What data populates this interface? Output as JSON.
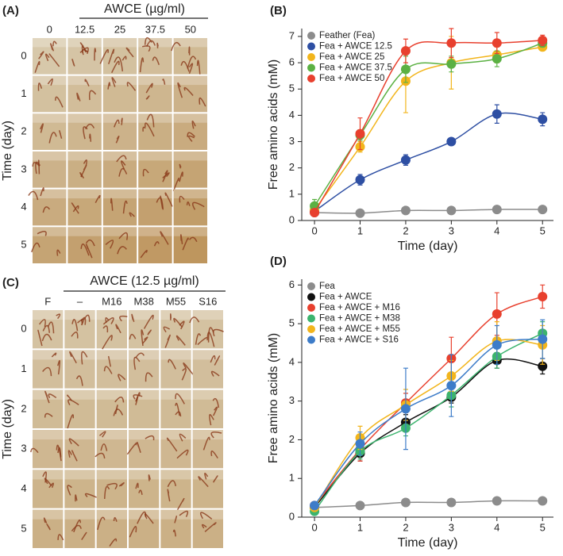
{
  "photo_panels": [
    {
      "label": "(A)",
      "header": "AWCE (µg/ml)",
      "columns": [
        "0",
        "12.5",
        "25",
        "37.5",
        "50"
      ],
      "y_label": "Time (day)",
      "rows": [
        "0",
        "1",
        "2",
        "3",
        "4",
        "5"
      ]
    },
    {
      "label": "(C)",
      "header": "AWCE (12.5 µg/ml)",
      "columns": [
        "F",
        "–",
        "M16",
        "M38",
        "M55",
        "S16"
      ],
      "y_label": "Time (day)",
      "rows": [
        "0",
        "1",
        "2",
        "3",
        "4",
        "5"
      ]
    }
  ],
  "chart_data": [
    {
      "type": "scatter",
      "label": "(B)",
      "x_label": "Time (day)",
      "y_label": "Free amino acids (mM)",
      "x": [
        0,
        1,
        2,
        3,
        4,
        5
      ],
      "xlim": [
        -0.28,
        5.24
      ],
      "xticks": [
        0,
        1,
        2,
        3,
        4,
        5
      ],
      "ylim": [
        0,
        7.3
      ],
      "yticks": [
        0,
        1,
        2,
        3,
        4,
        5,
        6,
        7
      ],
      "legend": "upper left",
      "series": [
        {
          "name": "Feather (Fea)",
          "color": "#8c8c8c",
          "values": [
            0.3,
            0.28,
            0.38,
            0.38,
            0.42,
            0.42
          ],
          "errors": [
            0.03,
            0.03,
            0.03,
            0.03,
            0.03,
            0.03
          ]
        },
        {
          "name": "Fea + AWCE 12.5",
          "color": "#2e4fa3",
          "values": [
            0.35,
            1.55,
            2.3,
            3.0,
            4.05,
            3.85
          ],
          "errors": [
            0.1,
            0.2,
            0.2,
            0.05,
            0.35,
            0.25
          ]
        },
        {
          "name": "Fea + AWCE 25",
          "color": "#f2b51c",
          "values": [
            0.4,
            2.8,
            5.3,
            6.0,
            6.3,
            6.6
          ],
          "errors": [
            0.1,
            0.2,
            1.2,
            1.0,
            0.3,
            0.1
          ]
        },
        {
          "name": "Fea + AWCE 37.5",
          "color": "#5bb143",
          "values": [
            0.55,
            3.25,
            5.75,
            5.95,
            6.15,
            6.75
          ],
          "errors": [
            0.25,
            0.2,
            0.5,
            0.3,
            0.3,
            0.15
          ]
        },
        {
          "name": "Fea + AWCE 50",
          "color": "#e8402e",
          "values": [
            0.3,
            3.3,
            6.45,
            6.75,
            6.75,
            6.85
          ],
          "errors": [
            0.1,
            0.6,
            0.45,
            0.55,
            0.4,
            0.2
          ]
        }
      ]
    },
    {
      "type": "scatter",
      "label": "(D)",
      "x_label": "Time (day)",
      "y_label": "Free amino acids (mM)",
      "x": [
        0,
        1,
        2,
        3,
        4,
        5
      ],
      "xlim": [
        -0.28,
        5.24
      ],
      "xticks": [
        0,
        1,
        2,
        3,
        4,
        5
      ],
      "ylim": [
        0,
        6.15
      ],
      "yticks": [
        0,
        1,
        2,
        3,
        4,
        5,
        6
      ],
      "legend": "upper left",
      "series": [
        {
          "name": "Fea",
          "color": "#8c8c8c",
          "values": [
            0.25,
            0.3,
            0.38,
            0.38,
            0.42,
            0.42
          ],
          "errors": [
            0.03,
            0.03,
            0.03,
            0.03,
            0.03,
            0.03
          ]
        },
        {
          "name": "Fea + AWCE",
          "color": "#111111",
          "values": [
            0.25,
            1.65,
            2.45,
            3.1,
            4.05,
            3.9
          ],
          "errors": [
            0.05,
            0.2,
            0.2,
            0.15,
            0.2,
            0.2
          ]
        },
        {
          "name": "Fea + AWCE + M16",
          "color": "#e8402e",
          "values": [
            0.3,
            1.75,
            2.95,
            4.1,
            5.25,
            5.7
          ],
          "errors": [
            0.05,
            0.3,
            0.25,
            0.55,
            0.55,
            0.3
          ]
        },
        {
          "name": "Fea + AWCE + M38",
          "color": "#3cb46e",
          "values": [
            0.15,
            1.7,
            2.3,
            3.15,
            4.15,
            4.75
          ],
          "errors": [
            0.05,
            0.2,
            0.2,
            0.3,
            0.3,
            0.3
          ]
        },
        {
          "name": "Fea + AWCE + M55",
          "color": "#f2b51c",
          "values": [
            0.25,
            2.05,
            2.9,
            3.65,
            4.55,
            4.45
          ],
          "errors": [
            0.05,
            0.3,
            0.4,
            0.4,
            0.5,
            0.5
          ]
        },
        {
          "name": "Fea + AWCE + S16",
          "color": "#3d7cc9",
          "values": [
            0.3,
            1.9,
            2.8,
            3.4,
            4.45,
            4.6
          ],
          "errors": [
            0.05,
            0.3,
            1.05,
            0.8,
            0.5,
            0.5
          ]
        }
      ]
    }
  ]
}
